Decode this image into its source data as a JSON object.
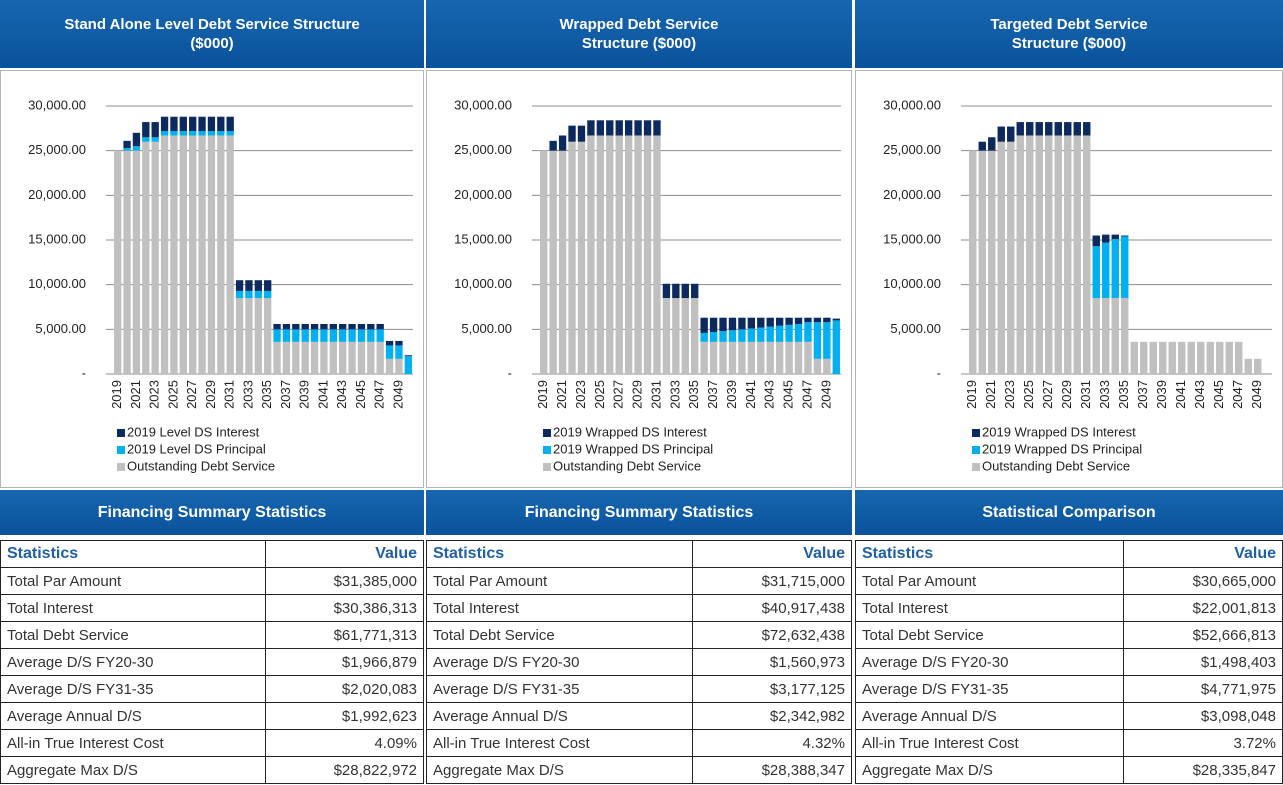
{
  "chart_data": [
    {
      "type": "bar",
      "stacked": true,
      "title": "Stand Alone Level Debt Service Structure ($000)",
      "categories": [
        "2019",
        null,
        "2021",
        null,
        "2023",
        null,
        "2025",
        null,
        "2027",
        null,
        "2029",
        null,
        "2031",
        null,
        "2033",
        null,
        "2035",
        null,
        "2037",
        null,
        "2039",
        null,
        "2041",
        null,
        "2043",
        null,
        "2045",
        null,
        "2047",
        null,
        "2049",
        null
      ],
      "series": [
        {
          "name": "2019 Level DS Interest",
          "color": "#0d2a5e",
          "values": [
            0,
            800,
            1500,
            1700,
            1700,
            1600,
            1600,
            1600,
            1600,
            1600,
            1600,
            1600,
            1600,
            1200,
            1200,
            1200,
            1200,
            600,
            600,
            600,
            600,
            600,
            600,
            600,
            600,
            600,
            600,
            600,
            600,
            500,
            500,
            100
          ]
        },
        {
          "name": "2019 Level DS Principal",
          "color": "#00b0f0",
          "values": [
            0,
            300,
            500,
            500,
            500,
            500,
            500,
            500,
            500,
            500,
            500,
            500,
            500,
            800,
            800,
            800,
            800,
            1400,
            1400,
            1400,
            1400,
            1400,
            1400,
            1400,
            1400,
            1400,
            1400,
            1400,
            1400,
            1500,
            1500,
            2000
          ]
        },
        {
          "name": "Outstanding Debt Service",
          "color": "#c0c0c0",
          "values": [
            25000,
            25000,
            25000,
            26000,
            26000,
            26700,
            26700,
            26700,
            26700,
            26700,
            26700,
            26700,
            26700,
            8500,
            8500,
            8500,
            8500,
            3600,
            3600,
            3600,
            3600,
            3600,
            3600,
            3600,
            3600,
            3600,
            3600,
            3600,
            3600,
            1700,
            1700,
            0
          ]
        }
      ],
      "ylim": [
        0,
        30000
      ],
      "yticks": [
        {
          "value": 0,
          "label": "-"
        },
        {
          "value": 5000,
          "label": "5,000.00"
        },
        {
          "value": 10000,
          "label": "10,000.00"
        },
        {
          "value": 15000,
          "label": "15,000.00"
        },
        {
          "value": 20000,
          "label": "20,000.00"
        },
        {
          "value": 25000,
          "label": "25,000.00"
        },
        {
          "value": 30000,
          "label": "30,000.00"
        }
      ],
      "grid": true,
      "legend": "bottom"
    },
    {
      "type": "bar",
      "stacked": true,
      "title": "Wrapped Debt Service Structure ($000)",
      "categories": [
        "2019",
        null,
        "2021",
        null,
        "2023",
        null,
        "2025",
        null,
        "2027",
        null,
        "2029",
        null,
        "2031",
        null,
        "2033",
        null,
        "2035",
        null,
        "2037",
        null,
        "2039",
        null,
        "2041",
        null,
        "2043",
        null,
        "2045",
        null,
        "2047",
        null,
        "2049",
        null
      ],
      "series": [
        {
          "name": "2019 Wrapped DS Interest",
          "color": "#0d2a5e",
          "values": [
            0,
            1100,
            1700,
            1800,
            1800,
            1700,
            1700,
            1700,
            1700,
            1700,
            1700,
            1700,
            1700,
            1600,
            1600,
            1600,
            1600,
            1700,
            1600,
            1500,
            1400,
            1300,
            1200,
            1100,
            1000,
            900,
            800,
            700,
            500,
            500,
            500,
            200
          ]
        },
        {
          "name": "2019 Wrapped DS Principal",
          "color": "#00b0f0",
          "values": [
            0,
            0,
            0,
            0,
            0,
            0,
            0,
            0,
            0,
            0,
            0,
            0,
            0,
            0,
            0,
            0,
            0,
            1000,
            1100,
            1200,
            1300,
            1400,
            1500,
            1600,
            1700,
            1800,
            1900,
            2000,
            2200,
            4100,
            4100,
            6000
          ]
        },
        {
          "name": "Outstanding Debt Service",
          "color": "#c0c0c0",
          "values": [
            25000,
            25000,
            25000,
            26000,
            26000,
            26700,
            26700,
            26700,
            26700,
            26700,
            26700,
            26700,
            26700,
            8500,
            8500,
            8500,
            8500,
            3600,
            3600,
            3600,
            3600,
            3600,
            3600,
            3600,
            3600,
            3600,
            3600,
            3600,
            3600,
            1700,
            1700,
            0
          ]
        }
      ],
      "ylim": [
        0,
        30000
      ],
      "yticks": [
        {
          "value": 0,
          "label": "-"
        },
        {
          "value": 5000,
          "label": "5,000.00"
        },
        {
          "value": 10000,
          "label": "10,000.00"
        },
        {
          "value": 15000,
          "label": "15,000.00"
        },
        {
          "value": 20000,
          "label": "20,000.00"
        },
        {
          "value": 25000,
          "label": "25,000.00"
        },
        {
          "value": 30000,
          "label": "30,000.00"
        }
      ],
      "grid": true,
      "legend": "bottom"
    },
    {
      "type": "bar",
      "stacked": true,
      "title": "Targeted Debt Service Structure ($000)",
      "categories": [
        "2019",
        null,
        "2021",
        null,
        "2023",
        null,
        "2025",
        null,
        "2027",
        null,
        "2029",
        null,
        "2031",
        null,
        "2033",
        null,
        "2035",
        null,
        "2037",
        null,
        "2039",
        null,
        "2041",
        null,
        "2043",
        null,
        "2045",
        null,
        "2047",
        null,
        "2049",
        null
      ],
      "series": [
        {
          "name": "2019 Wrapped DS Interest",
          "color": "#0d2a5e",
          "values": [
            0,
            1000,
            1500,
            1700,
            1700,
            1500,
            1500,
            1500,
            1500,
            1500,
            1500,
            1500,
            1500,
            1200,
            900,
            500,
            100,
            0,
            0,
            0,
            0,
            0,
            0,
            0,
            0,
            0,
            0,
            0,
            0,
            0,
            0,
            0
          ]
        },
        {
          "name": "2019 Wrapped DS Principal",
          "color": "#00b0f0",
          "values": [
            0,
            0,
            0,
            0,
            0,
            0,
            0,
            0,
            0,
            0,
            0,
            0,
            0,
            5800,
            6200,
            6600,
            6900,
            0,
            0,
            0,
            0,
            0,
            0,
            0,
            0,
            0,
            0,
            0,
            0,
            0,
            0,
            0
          ]
        },
        {
          "name": "Outstanding Debt Service",
          "color": "#c0c0c0",
          "values": [
            25000,
            25000,
            25000,
            26000,
            26000,
            26700,
            26700,
            26700,
            26700,
            26700,
            26700,
            26700,
            26700,
            8500,
            8500,
            8500,
            8500,
            3600,
            3600,
            3600,
            3600,
            3600,
            3600,
            3600,
            3600,
            3600,
            3600,
            3600,
            3600,
            1700,
            1700,
            0
          ]
        }
      ],
      "ylim": [
        0,
        30000
      ],
      "yticks": [
        {
          "value": 0,
          "label": "-"
        },
        {
          "value": 5000,
          "label": "5,000.00"
        },
        {
          "value": 10000,
          "label": "10,000.00"
        },
        {
          "value": 15000,
          "label": "15,000.00"
        },
        {
          "value": 20000,
          "label": "20,000.00"
        },
        {
          "value": 25000,
          "label": "25,000.00"
        },
        {
          "value": 30000,
          "label": "30,000.00"
        }
      ],
      "grid": true,
      "legend": "bottom"
    }
  ],
  "tables": [
    {
      "title": "Financing Summary Statistics",
      "columns": [
        "Statistics",
        "Value"
      ],
      "rows": [
        [
          "Total Par Amount",
          "$31,385,000"
        ],
        [
          "Total Interest",
          "$30,386,313"
        ],
        [
          "Total Debt Service",
          "$61,771,313"
        ],
        [
          "Average D/S FY20-30",
          "$1,966,879"
        ],
        [
          "Average D/S FY31-35",
          "$2,020,083"
        ],
        [
          "Average Annual D/S",
          "$1,992,623"
        ],
        [
          "All-in True Interest Cost",
          "4.09%"
        ],
        [
          "Aggregate Max D/S",
          "$28,822,972"
        ]
      ]
    },
    {
      "title": "Financing Summary Statistics",
      "columns": [
        "Statistics",
        "Value"
      ],
      "rows": [
        [
          "Total Par Amount",
          "$31,715,000"
        ],
        [
          "Total Interest",
          "$40,917,438"
        ],
        [
          "Total Debt Service",
          "$72,632,438"
        ],
        [
          "Average D/S FY20-30",
          "$1,560,973"
        ],
        [
          "Average D/S FY31-35",
          "$3,177,125"
        ],
        [
          "Average Annual D/S",
          "$2,342,982"
        ],
        [
          "All-in True Interest Cost",
          "4.32%"
        ],
        [
          "Aggregate Max D/S",
          "$28,388,347"
        ]
      ]
    },
    {
      "title": "Statistical Comparison",
      "columns": [
        "Statistics",
        "Value"
      ],
      "rows": [
        [
          "Total Par Amount",
          "$30,665,000"
        ],
        [
          "Total Interest",
          "$22,001,813"
        ],
        [
          "Total Debt Service",
          "$52,666,813"
        ],
        [
          "Average D/S FY20-30",
          "$1,498,403"
        ],
        [
          "Average D/S FY31-35",
          "$4,771,975"
        ],
        [
          "Average Annual D/S",
          "$3,098,048"
        ],
        [
          "All-in True Interest Cost",
          "3.72%"
        ],
        [
          "Aggregate Max D/S",
          "$28,335,847"
        ]
      ]
    }
  ]
}
